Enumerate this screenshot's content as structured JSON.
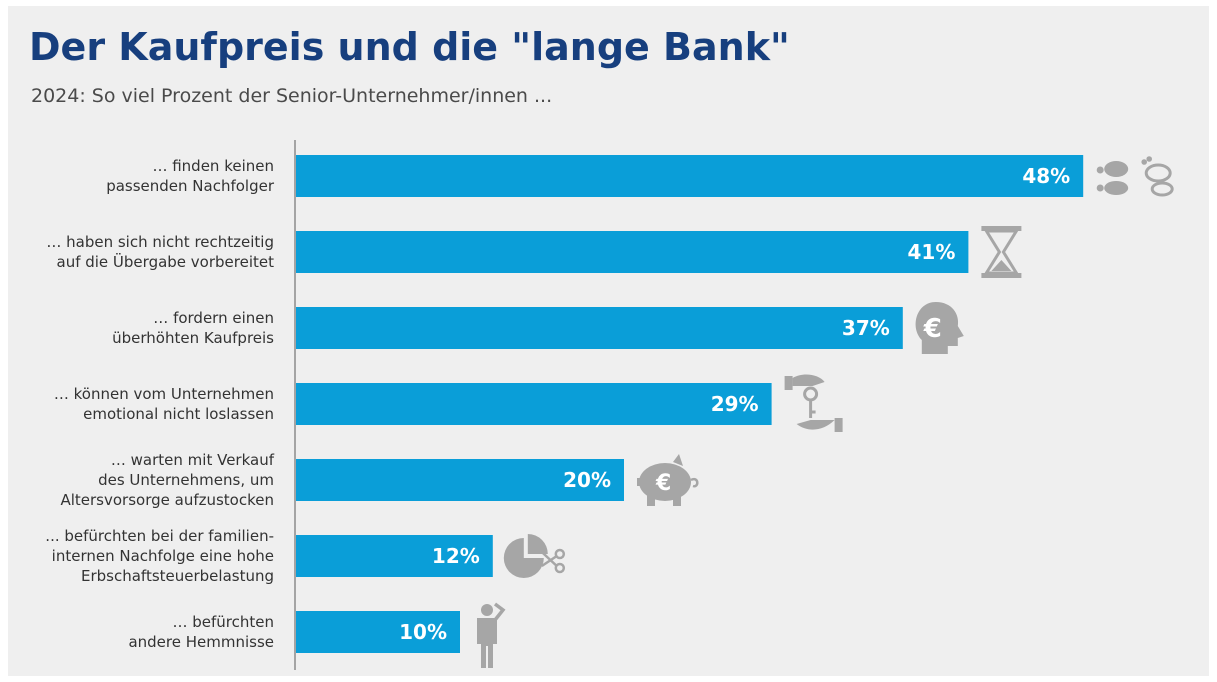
{
  "header": {
    "title": "Der Kaufpreis und die \"lange Bank\"",
    "subtitle": "2024: So viel Prozent der Senior-Unternehmer/innen ..."
  },
  "colors": {
    "bar": "#0a9ed8",
    "title": "#173f7e",
    "icon": "#a6a6a6",
    "axis": "#8c8c8c"
  },
  "chart_data": {
    "type": "bar",
    "orientation": "horizontal",
    "title": "Der Kaufpreis und die \"lange Bank\"",
    "subtitle": "2024: So viel Prozent der Senior-Unternehmer/innen ...",
    "unit": "%",
    "xlim": [
      0,
      60
    ],
    "grid": false,
    "categories": [
      [
        "… finden keinen",
        "passenden Nachfolger"
      ],
      [
        "… haben sich nicht rechtzeitig",
        "auf die Übergabe vorbereitet"
      ],
      [
        "… fordern einen",
        "überhöhten Kaufpreis"
      ],
      [
        "… können vom Unternehmen",
        "emotional nicht loslassen"
      ],
      [
        "… warten mit Verkauf",
        "des Unternehmens, um",
        "Altersvorsorge aufzustocken"
      ],
      [
        "... befürchten bei der familien-",
        "internen Nachfolge eine hohe",
        "Erbschaftsteuerbelastung"
      ],
      [
        "… befürchten",
        "andere Hemmnisse"
      ]
    ],
    "values": [
      48,
      41,
      37,
      29,
      20,
      12,
      10
    ],
    "value_labels": [
      "48%",
      "41%",
      "37%",
      "29%",
      "20%",
      "12%",
      "10%"
    ],
    "icons": [
      "footprints-icon",
      "hourglass-icon",
      "euro-head-icon",
      "key-handover-icon",
      "piggy-bank-euro-icon",
      "pie-scissors-icon",
      "thinking-man-icon"
    ]
  }
}
